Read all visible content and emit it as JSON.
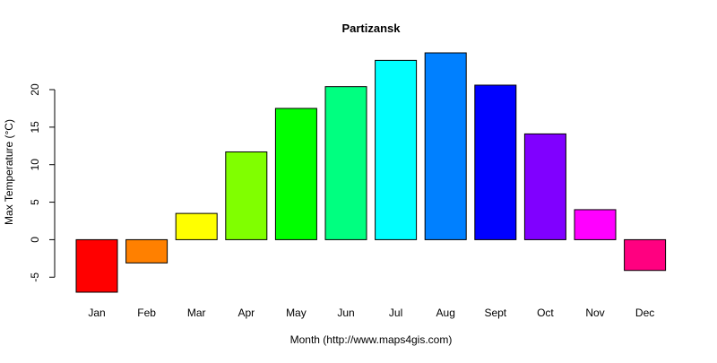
{
  "chart_data": {
    "type": "bar",
    "title": "Partizansk",
    "xlabel": "Month (http://www.maps4gis.com)",
    "ylabel": "Max Temperature (°C)",
    "categories": [
      "Jan",
      "Feb",
      "Mar",
      "Apr",
      "May",
      "Jun",
      "Jul",
      "Aug",
      "Sept",
      "Oct",
      "Nov",
      "Dec"
    ],
    "values": [
      -7.0,
      -3.1,
      3.5,
      11.7,
      17.5,
      20.4,
      23.9,
      24.9,
      20.6,
      14.1,
      4.0,
      -4.1
    ],
    "colors": [
      "#FF0000",
      "#FF8000",
      "#FFFF00",
      "#80FF00",
      "#00FF00",
      "#00FF80",
      "#00FFFF",
      "#0080FF",
      "#0000FF",
      "#8000FF",
      "#FF00FF",
      "#FF0080"
    ],
    "yticks": [
      -5,
      0,
      5,
      10,
      15,
      20
    ],
    "ylim": [
      -7.0,
      24.9
    ],
    "grid": false,
    "legend": "none"
  }
}
